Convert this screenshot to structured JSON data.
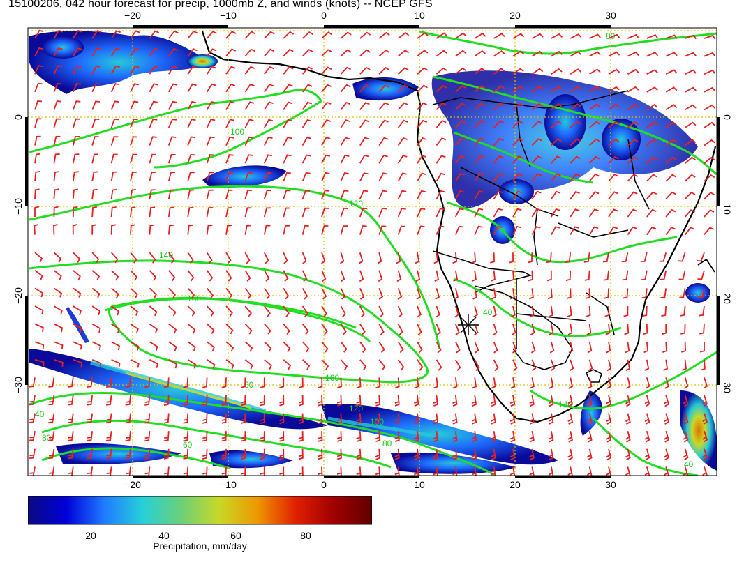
{
  "title": "15100206, 042 hour forecast for precip, 1000mb Z, and winds (knots) -- NCEP GFS",
  "colors": {
    "contour": "#22dd22",
    "barb": "#e82020",
    "coast": "#000000",
    "grid": "#d8c000",
    "frame": "#000000"
  },
  "map": {
    "lon_range": [
      -30,
      40
    ],
    "lat_range": [
      -40,
      10
    ],
    "lon_ticks": [
      "−20",
      "−10",
      "0",
      "10",
      "20",
      "30"
    ],
    "lat_ticks": [
      "0",
      "−10",
      "−20",
      "−30"
    ],
    "marker": "star-marker"
  },
  "contours": {
    "label_1": "100",
    "label_2": "120",
    "label_3": "140",
    "label_4": "160",
    "label_5": "160",
    "label_6": "120",
    "label_7": "100",
    "label_8": "80",
    "label_9": "60",
    "label_10": "40",
    "label_11": "80",
    "label_12": "140",
    "label_13": "40",
    "label_14": "40",
    "label_15": "60",
    "label_16": "80"
  },
  "colorbar": {
    "ticks": [
      "20",
      "40",
      "60",
      "80"
    ],
    "label": "Precipitation, mm/day",
    "stops": [
      "#0a0a80",
      "#0000d8",
      "#1f7bff",
      "#26d0d8",
      "#6ad07a",
      "#c8d828",
      "#ee9800",
      "#e02000",
      "#a00000",
      "#600000"
    ]
  }
}
